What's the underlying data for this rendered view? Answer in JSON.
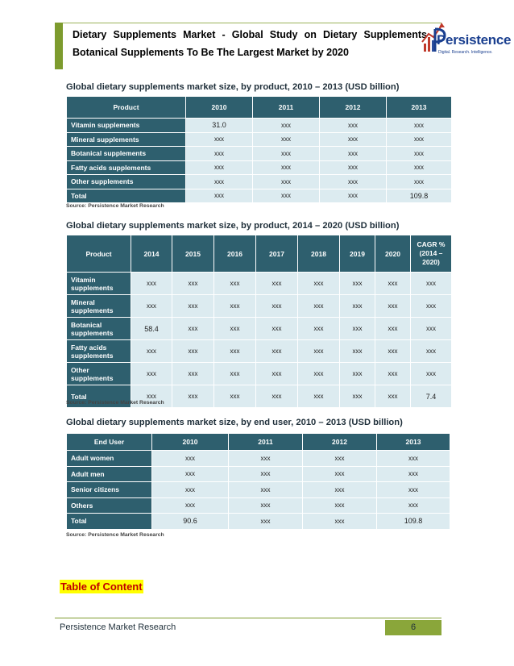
{
  "header": {
    "title_line1": "Dietary Supplements Market - Global Study on Dietary Supplements",
    "title_line2": "Botanical Supplements To Be The Largest Market by 2020",
    "logo_name": "Persistence",
    "logo_tagline": "Digital. Research. Intelligence."
  },
  "table1": {
    "title": "Global dietary supplements market size, by product, 2010 – 2013 (USD billion)",
    "columns": [
      "Product",
      "2010",
      "2011",
      "2012",
      "2013"
    ],
    "rows": [
      [
        "Vitamin supplements",
        "31.0",
        "xxx",
        "xxx",
        "xxx"
      ],
      [
        "Mineral supplements",
        "xxx",
        "xxx",
        "xxx",
        "xxx"
      ],
      [
        "Botanical supplements",
        "xxx",
        "xxx",
        "xxx",
        "xxx"
      ],
      [
        "Fatty acids supplements",
        "xxx",
        "xxx",
        "xxx",
        "xxx"
      ],
      [
        "Other supplements",
        "xxx",
        "xxx",
        "xxx",
        "xxx"
      ],
      [
        "Total",
        "xxx",
        "xxx",
        "xxx",
        "109.8"
      ]
    ],
    "source": "Source: Persistence Market Research"
  },
  "table2": {
    "title": "Global dietary supplements market size, by product, 2014 – 2020 (USD billion)",
    "columns": [
      "Product",
      "2014",
      "2015",
      "2016",
      "2017",
      "2018",
      "2019",
      "2020",
      "CAGR % (2014 – 2020)"
    ],
    "rows": [
      [
        "Vitamin supplements",
        "xxx",
        "xxx",
        "xxx",
        "xxx",
        "xxx",
        "xxx",
        "xxx",
        "xxx"
      ],
      [
        "Mineral supplements",
        "xxx",
        "xxx",
        "xxx",
        "xxx",
        "xxx",
        "xxx",
        "xxx",
        "xxx"
      ],
      [
        "Botanical supplements",
        "58.4",
        "xxx",
        "xxx",
        "xxx",
        "xxx",
        "xxx",
        "xxx",
        "xxx"
      ],
      [
        "Fatty acids supplements",
        "xxx",
        "xxx",
        "xxx",
        "xxx",
        "xxx",
        "xxx",
        "xxx",
        "xxx"
      ],
      [
        "Other supplements",
        "xxx",
        "xxx",
        "xxx",
        "xxx",
        "xxx",
        "xxx",
        "xxx",
        "xxx"
      ],
      [
        "Total",
        "xxx",
        "xxx",
        "xxx",
        "xxx",
        "xxx",
        "xxx",
        "xxx",
        "7.4"
      ]
    ],
    "source": "Source: Persistence Market Research"
  },
  "table3": {
    "title": "Global dietary supplements market size, by end user, 2010 – 2013 (USD billion)",
    "columns": [
      "End User",
      "2010",
      "2011",
      "2012",
      "2013"
    ],
    "rows": [
      [
        "Adult women",
        "xxx",
        "xxx",
        "xxx",
        "xxx"
      ],
      [
        "Adult men",
        "xxx",
        "xxx",
        "xxx",
        "xxx"
      ],
      [
        "Senior citizens",
        "xxx",
        "xxx",
        "xxx",
        "xxx"
      ],
      [
        "Others",
        "xxx",
        "xxx",
        "xxx",
        "xxx"
      ],
      [
        "Total",
        "90.6",
        "xxx",
        "xxx",
        "109.8"
      ]
    ],
    "source": "Source: Persistence Market Research"
  },
  "toc": {
    "label": "Table of Content"
  },
  "footer": {
    "company": "Persistence Market Research",
    "page_number": "6"
  },
  "colors": {
    "header_bar": "#7d9b2e",
    "table_header": "#2e5f6e",
    "table_cell": "#dcebf0",
    "toc_text": "#c00000",
    "toc_highlight": "#ffff00"
  }
}
